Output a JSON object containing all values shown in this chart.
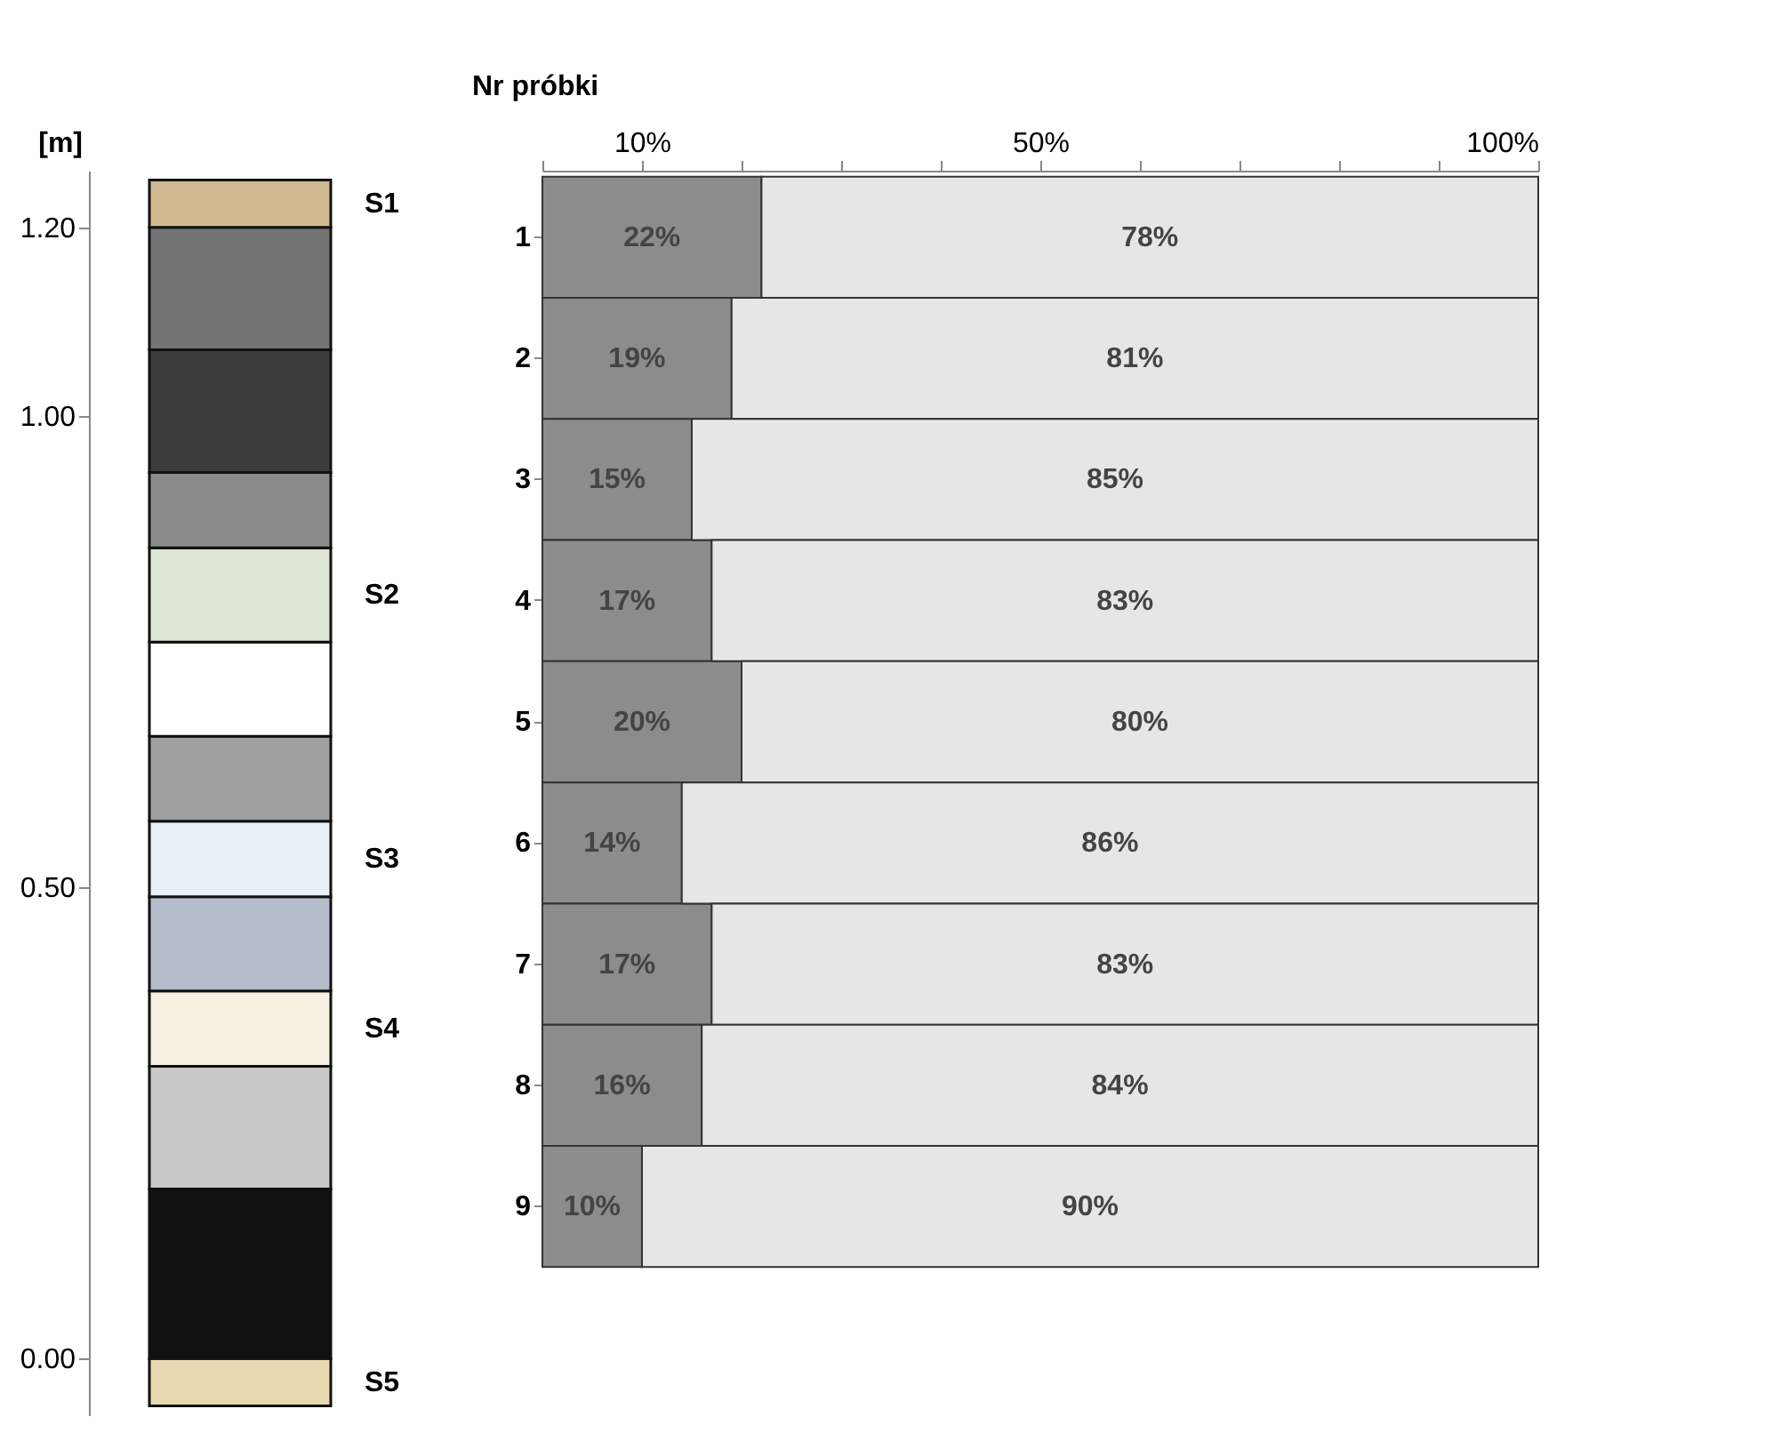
{
  "chart_data": [
    {
      "type": "bar",
      "stacked": true,
      "ylabel": "[m]",
      "categories": [
        null
      ],
      "ylim": [
        -0.06,
        1.26
      ],
      "yticks": [
        {
          "value": 0,
          "label": "0.00"
        },
        {
          "value": 0.5,
          "label": "0.50"
        },
        {
          "value": 1.0,
          "label": "1.00"
        },
        {
          "value": 1.2,
          "label": "1.20"
        }
      ],
      "series": [
        {
          "name": "S5",
          "color": "#e8d9b0",
          "values": [
            -0.05
          ]
        },
        {
          "color": "#111111",
          "values": [
            0.18
          ]
        },
        {
          "color": "#c8c8c8",
          "values": [
            0.13
          ]
        },
        {
          "name": "S4",
          "color": "#f5f0e0",
          "values": [
            0.08
          ]
        },
        {
          "color": "#b4bccc",
          "values": [
            0.1
          ]
        },
        {
          "name": "S3",
          "color": "#e6f0f6",
          "values": [
            0.08
          ]
        },
        {
          "color": "#a0a0a0",
          "values": [
            0.09
          ]
        },
        {
          "color": "#ffffff",
          "values": [
            0.1
          ]
        },
        {
          "name": "S2",
          "color": "#dde6d4",
          "values": [
            0.1
          ]
        },
        {
          "color": "#8a8a8a",
          "values": [
            0.08
          ]
        },
        {
          "color": "#3c3c3c",
          "values": [
            0.13
          ]
        },
        {
          "color": "#747474",
          "values": [
            0.13
          ]
        },
        {
          "name": "S1",
          "color": "#d0b890",
          "values": [
            0.05
          ]
        }
      ]
    },
    {
      "type": "bar",
      "orientation": "horizontal",
      "stacked": true,
      "ylabel": "Nr próbki",
      "categories": [
        "1",
        "2",
        "3",
        "4",
        "5",
        "6",
        "7",
        "8",
        "9"
      ],
      "xlim": [
        0,
        100
      ],
      "xticks": [
        {
          "value": 0,
          "label": null
        },
        {
          "value": 10,
          "label": "10%"
        },
        {
          "value": 20,
          "label": null
        },
        {
          "value": 30,
          "label": null
        },
        {
          "value": 40,
          "label": null
        },
        {
          "value": 50,
          "label": "50%"
        },
        {
          "value": 60,
          "label": null
        },
        {
          "value": 70,
          "label": null
        },
        {
          "value": 80,
          "label": null
        },
        {
          "value": 90,
          "label": null
        },
        {
          "value": 100,
          "label": "100%"
        }
      ],
      "series": [
        {
          "color": "#8c8c8c",
          "values": [
            22,
            19,
            15,
            17,
            20,
            14,
            17,
            16,
            10
          ]
        },
        {
          "color": "#e6e6e6",
          "values": [
            78,
            81,
            85,
            83,
            80,
            86,
            83,
            84,
            90
          ]
        }
      ],
      "value_labels": [
        [
          "22%",
          "19%",
          "15%",
          "17%",
          "20%",
          "14%",
          "17%",
          "16%",
          "10%"
        ],
        [
          "78%",
          "81%",
          "85%",
          "83%",
          "80%",
          "86%",
          "83%",
          "84%",
          "90%"
        ]
      ]
    }
  ]
}
